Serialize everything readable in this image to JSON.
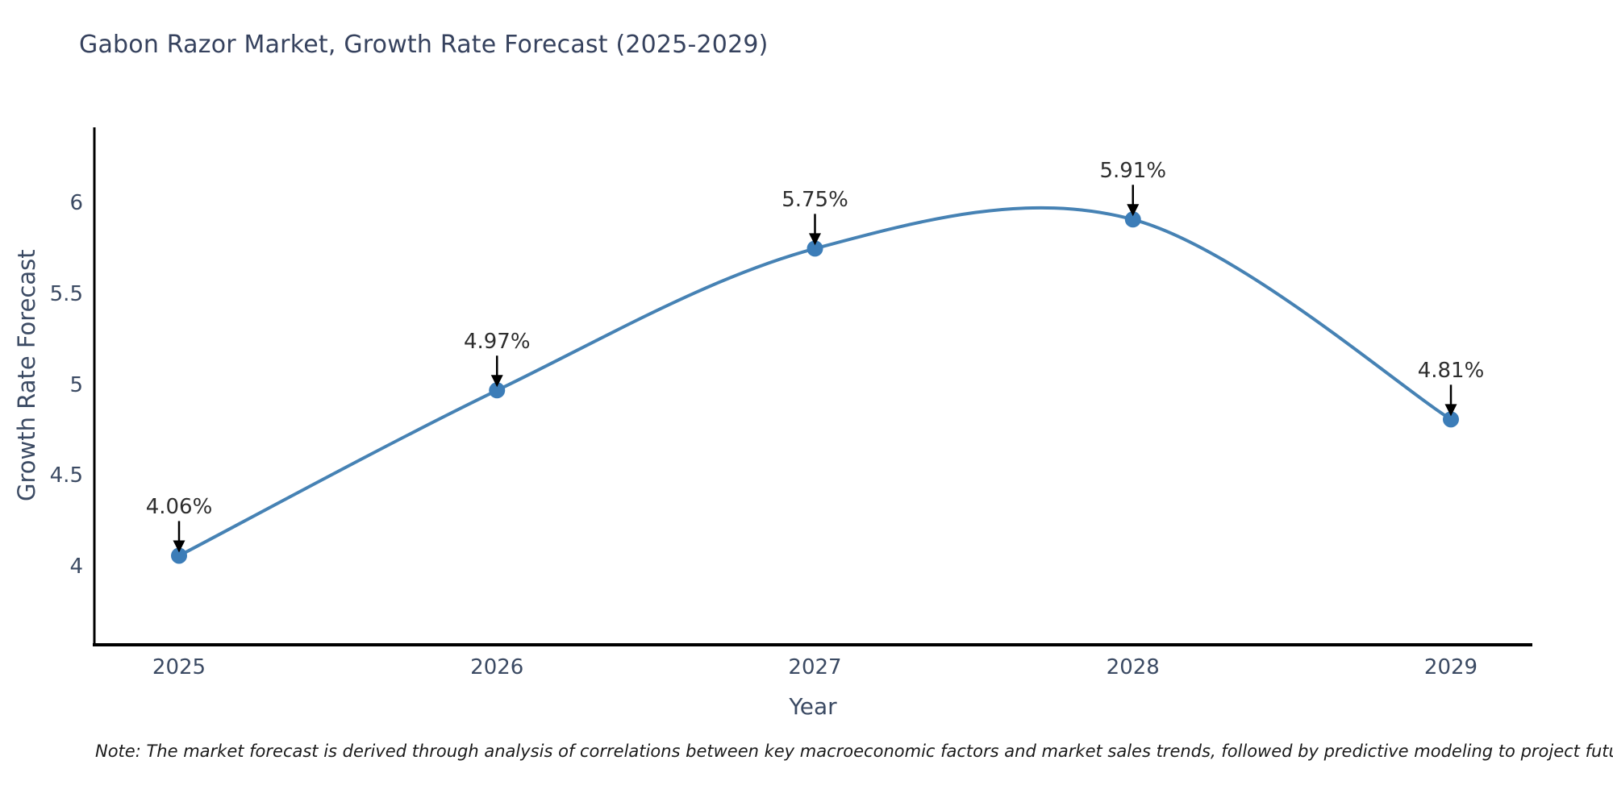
{
  "page": {
    "background": "#ffffff"
  },
  "header": {
    "title": "Gabon Razor Market, Growth Rate Forecast (2025-2029)"
  },
  "chart_data": {
    "type": "line",
    "title": "Gabon Razor Market, Growth Rate Forecast (2025-2029)",
    "xlabel": "Year",
    "ylabel": "Growth Rate Forecast",
    "x": [
      2025,
      2026,
      2027,
      2028,
      2029
    ],
    "xticks": [
      "2025",
      "2026",
      "2027",
      "2028",
      "2029"
    ],
    "yticks": [
      4,
      4.5,
      5,
      5.5,
      6
    ],
    "ytick_labels": [
      "4",
      "4.5",
      "5",
      "5.5",
      "6"
    ],
    "ylim": [
      3.57,
      6.42
    ],
    "grid": false,
    "legend": "none",
    "smooth": true,
    "series": [
      {
        "name": "Growth Rate Forecast",
        "values": [
          4.06,
          4.97,
          5.75,
          5.91,
          4.81
        ]
      }
    ],
    "point_labels": [
      "4.06%",
      "4.97%",
      "5.75%",
      "5.91%",
      "4.81%"
    ],
    "colors": {
      "line": "#4682b4",
      "marker": "#3c7db8",
      "axis": "#000000",
      "annotation_arrow": "#000000",
      "annotation_text": "#2e2e2e",
      "tick_text": "#3b4a63",
      "title_text": "#36425e"
    }
  },
  "footer": {
    "note": "Note: The market forecast is derived through analysis of correlations between key macroeconomic factors and market sales trends, followed by predictive modeling to project future sales"
  }
}
